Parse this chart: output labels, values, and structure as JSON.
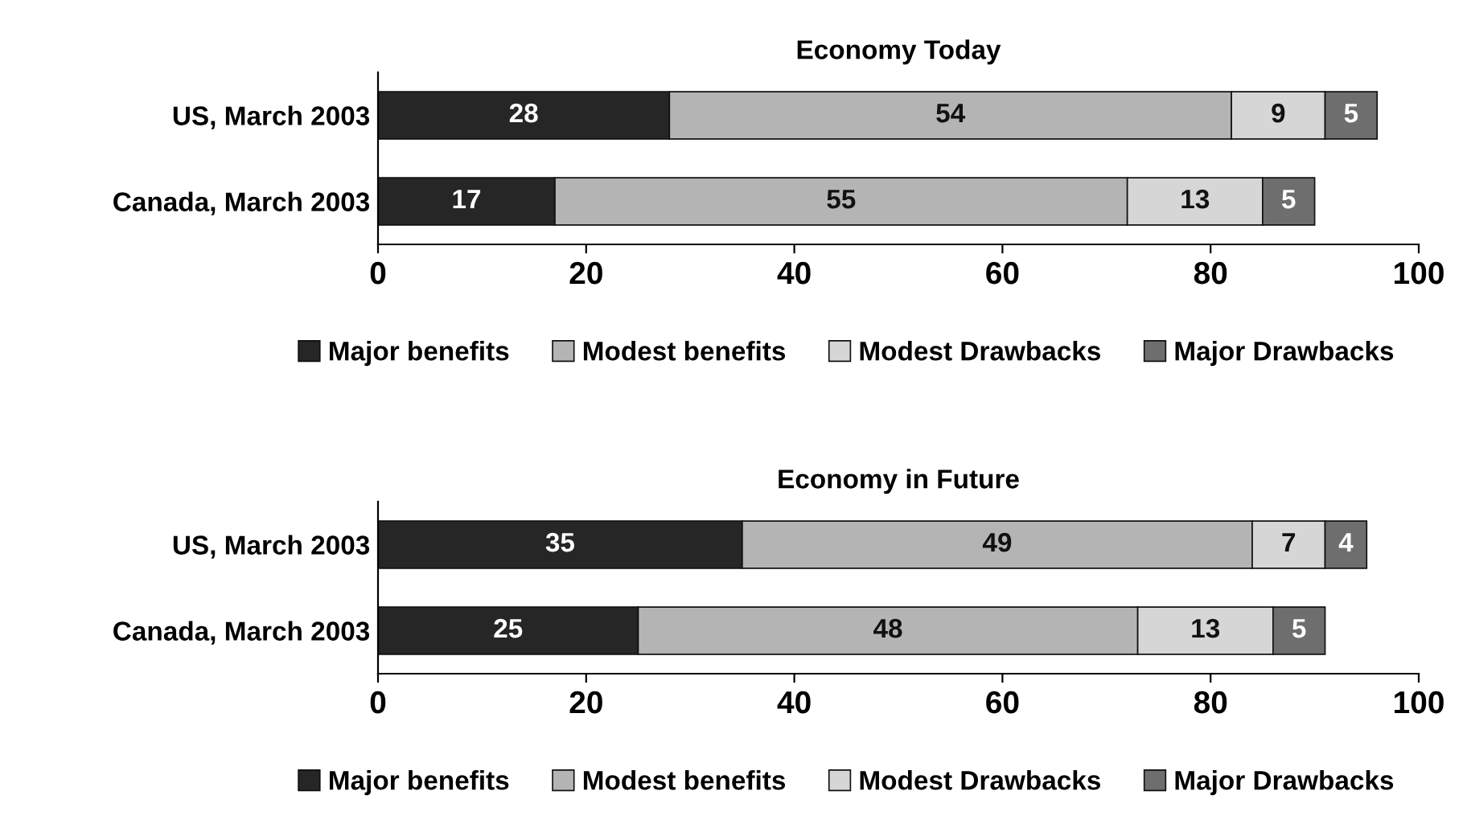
{
  "chart_data": [
    {
      "type": "bar",
      "title": "Economy Today",
      "orientation": "horizontal",
      "stacked": true,
      "categories": [
        "US, March 2003",
        "Canada, March 2003"
      ],
      "series": [
        {
          "name": "Major benefits",
          "color": "#262626",
          "values": [
            28,
            17
          ]
        },
        {
          "name": "Modest benefits",
          "color": "#b4b4b4",
          "values": [
            54,
            55
          ]
        },
        {
          "name": "Modest Drawbacks",
          "color": "#d6d6d6",
          "values": [
            9,
            13
          ]
        },
        {
          "name": "Major Drawbacks",
          "color": "#6e6e6e",
          "values": [
            5,
            5
          ]
        }
      ],
      "xlim": [
        0,
        100
      ],
      "xticks": [
        0,
        20,
        40,
        60,
        80,
        100
      ],
      "grid": false,
      "legend": "bottom",
      "data_labels": true
    },
    {
      "type": "bar",
      "title": "Economy in Future",
      "orientation": "horizontal",
      "stacked": true,
      "categories": [
        "US, March 2003",
        "Canada, March 2003"
      ],
      "series": [
        {
          "name": "Major benefits",
          "color": "#262626",
          "values": [
            35,
            25
          ]
        },
        {
          "name": "Modest benefits",
          "color": "#b4b4b4",
          "values": [
            49,
            48
          ]
        },
        {
          "name": "Modest Drawbacks",
          "color": "#d6d6d6",
          "values": [
            7,
            13
          ]
        },
        {
          "name": "Major Drawbacks",
          "color": "#6e6e6e",
          "values": [
            4,
            5
          ]
        }
      ],
      "xlim": [
        0,
        100
      ],
      "xticks": [
        0,
        20,
        40,
        60,
        80,
        100
      ],
      "grid": false,
      "legend": "bottom",
      "data_labels": true
    }
  ]
}
